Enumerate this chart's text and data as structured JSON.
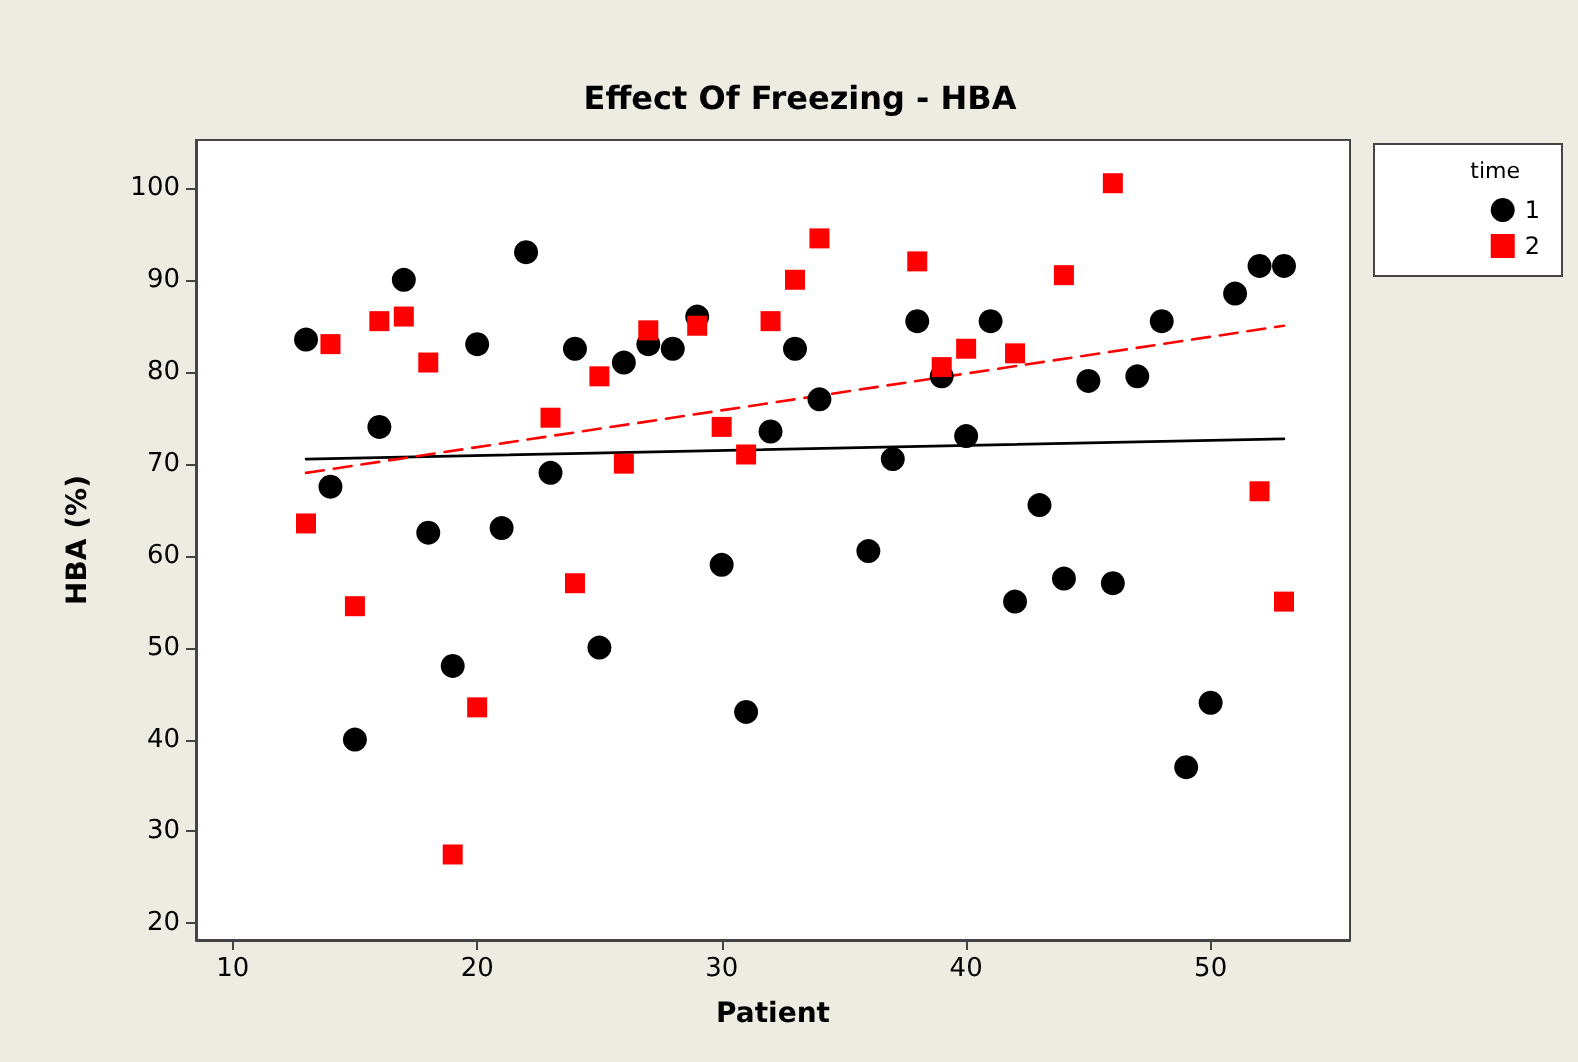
{
  "chart_data": {
    "type": "scatter",
    "title": "Effect Of Freezing - HBA",
    "xlabel": "Patient",
    "ylabel": "HBA (%)",
    "legend_title": "time",
    "legend": "right",
    "grid": false,
    "xlim": [
      8.5,
      55.7
    ],
    "xticks": [
      10,
      20,
      30,
      40,
      50
    ],
    "ylim": [
      18.2,
      105.2
    ],
    "yticks": [
      20,
      30,
      40,
      50,
      60,
      70,
      80,
      90,
      100
    ],
    "series": [
      {
        "name": "1",
        "color": "#000000",
        "marker": "circle",
        "x": [
          13,
          14,
          15,
          16,
          17,
          18,
          19,
          20,
          21,
          22,
          23,
          24,
          25,
          26,
          27,
          28,
          29,
          30,
          31,
          32,
          33,
          34,
          36,
          37,
          38,
          39,
          40,
          41,
          42,
          43,
          44,
          45,
          46,
          47,
          48,
          49,
          50,
          51,
          52,
          53
        ],
        "values": [
          83.5,
          67.5,
          40,
          74,
          90,
          62.5,
          48,
          83,
          63,
          93,
          69,
          82.5,
          50,
          81,
          83,
          82.5,
          86,
          59,
          43,
          73.5,
          82.5,
          77,
          60.5,
          70.5,
          85.5,
          79.5,
          73,
          85.5,
          55,
          65.5,
          57.5,
          79,
          57,
          79.5,
          85.5,
          37,
          44,
          88.5,
          91.5,
          91.5
        ]
      },
      {
        "name": "2",
        "color": "#ff0000",
        "marker": "square",
        "x": [
          13,
          14,
          15,
          16,
          17,
          18,
          19,
          20,
          23,
          24,
          25,
          26,
          27,
          29,
          30,
          31,
          32,
          33,
          34,
          38,
          39,
          40,
          42,
          44,
          46,
          52,
          53
        ],
        "values": [
          63.5,
          83,
          54.5,
          85.5,
          86,
          81,
          27.5,
          43.5,
          75,
          57,
          79.5,
          70,
          84.5,
          85,
          74,
          71,
          85.5,
          90,
          94.5,
          92,
          80.5,
          82.5,
          82,
          90.5,
          100.5,
          67,
          55
        ]
      },
      {
        "type": "line",
        "color": "#000000",
        "marker": "none",
        "line_style": "solid",
        "x": [
          13,
          53
        ],
        "values": [
          70.5,
          72.7
        ]
      },
      {
        "type": "line",
        "color": "#ff0000",
        "marker": "none",
        "line_style": "dashed",
        "x": [
          13,
          53
        ],
        "values": [
          69,
          85
        ]
      }
    ]
  }
}
